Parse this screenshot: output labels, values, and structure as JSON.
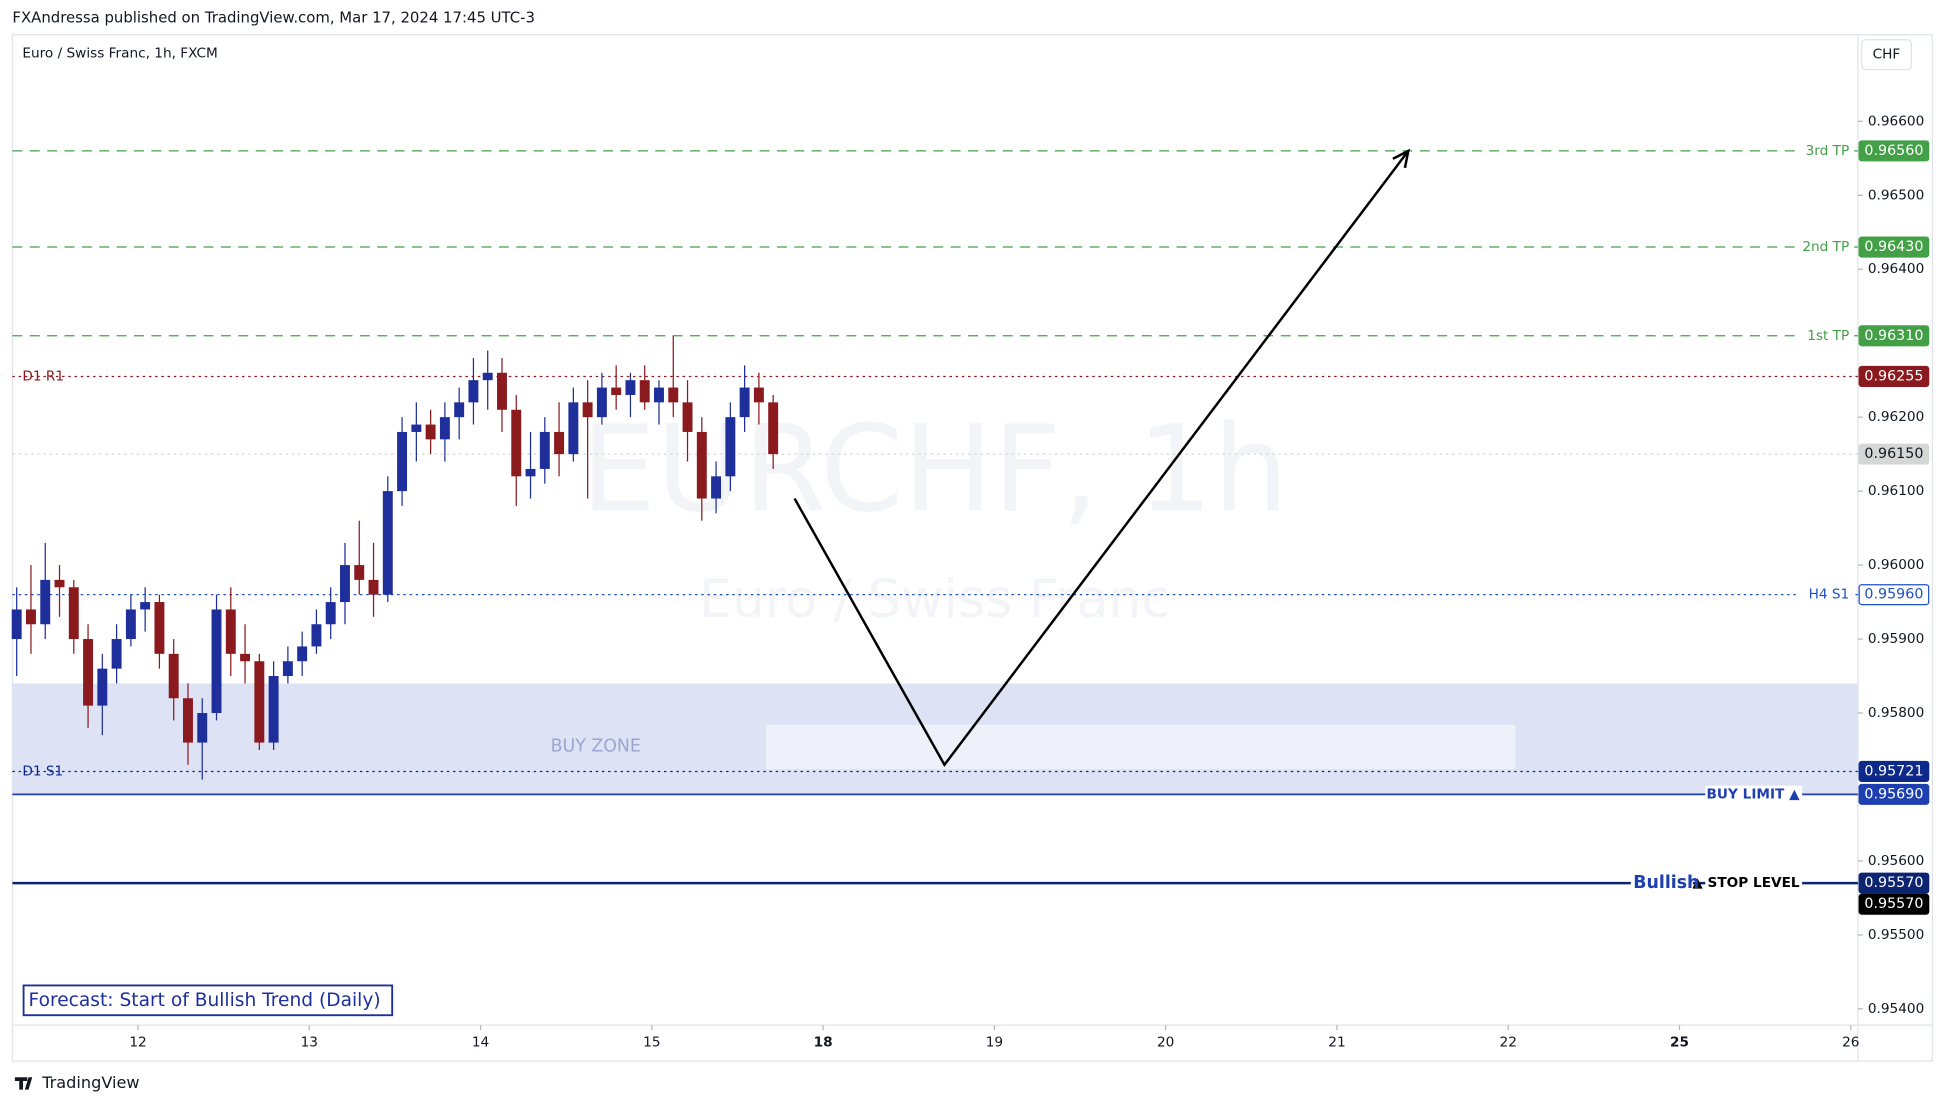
{
  "header": "FXAndressa published on TradingView.com, Mar 17, 2024 17:45 UTC-3",
  "footer": "TradingView",
  "chart_data": {
    "type": "candlestick",
    "title": "Euro / Swiss Franc, 1h, FXCM",
    "currency": "CHF",
    "watermark": "EURCHF, 1h",
    "watermark_subtitle": "Euro / Swiss Franc",
    "annotation": "Forecast: Start of Bullish Trend (Daily)",
    "bullish_label": "Bullish",
    "up_color": "#1e2f9c",
    "down_color": "#8b1a1f",
    "xlim": [
      -17.6,
      241
    ],
    "ylim": [
      0.95378,
      0.96717
    ],
    "xticks": [
      {
        "value": 0,
        "label": "12"
      },
      {
        "value": 24,
        "label": "13"
      },
      {
        "value": 48,
        "label": "14"
      },
      {
        "value": 72,
        "label": "15"
      },
      {
        "value": 96,
        "label": "18",
        "bold": true
      },
      {
        "value": 120,
        "label": "19"
      },
      {
        "value": 144,
        "label": "20"
      },
      {
        "value": 168,
        "label": "21"
      },
      {
        "value": 192,
        "label": "22"
      },
      {
        "value": 216,
        "label": "25",
        "bold": true
      },
      {
        "value": 240,
        "label": "26"
      }
    ],
    "yticks": [
      {
        "value": 0.954,
        "label": "0.95400"
      },
      {
        "value": 0.955,
        "label": "0.95500"
      },
      {
        "value": 0.956,
        "label": "0.95600"
      },
      {
        "value": 0.958,
        "label": "0.95800"
      },
      {
        "value": 0.959,
        "label": "0.95900"
      },
      {
        "value": 0.96,
        "label": "0.96000"
      },
      {
        "value": 0.961,
        "label": "0.96100"
      },
      {
        "value": 0.962,
        "label": "0.96200"
      },
      {
        "value": 0.964,
        "label": "0.96400"
      },
      {
        "value": 0.965,
        "label": "0.96500"
      },
      {
        "value": 0.966,
        "label": "0.96600"
      }
    ],
    "x": [
      -17,
      -15,
      -13,
      -11,
      -9,
      -7,
      -5,
      -3,
      -1,
      1,
      3,
      5,
      7,
      9,
      11,
      13,
      15,
      17,
      19,
      21,
      23,
      25,
      27,
      29,
      31,
      33,
      35,
      37,
      39,
      41,
      43,
      45,
      47,
      49,
      51,
      53,
      55,
      57,
      59,
      61,
      63,
      65,
      67,
      69,
      71,
      73,
      75,
      77,
      79,
      81,
      83,
      85,
      87,
      89
    ],
    "open": [
      0.959,
      0.9594,
      0.9592,
      0.9598,
      0.9597,
      0.959,
      0.9581,
      0.9586,
      0.959,
      0.9594,
      0.9595,
      0.9588,
      0.9582,
      0.9576,
      0.958,
      0.9594,
      0.9588,
      0.9587,
      0.9576,
      0.9585,
      0.9587,
      0.9589,
      0.9592,
      0.9595,
      0.96,
      0.9598,
      0.9596,
      0.961,
      0.9618,
      0.9619,
      0.9617,
      0.962,
      0.9622,
      0.9625,
      0.9626,
      0.9621,
      0.9612,
      0.9613,
      0.9618,
      0.9615,
      0.9622,
      0.962,
      0.9624,
      0.9623,
      0.9625,
      0.9622,
      0.9624,
      0.9622,
      0.9618,
      0.9609,
      0.9612,
      0.962,
      0.9624,
      0.9622
    ],
    "high": [
      0.9597,
      0.96,
      0.9603,
      0.96,
      0.9598,
      0.9592,
      0.9588,
      0.9592,
      0.9596,
      0.9597,
      0.9596,
      0.959,
      0.9584,
      0.9582,
      0.9596,
      0.9597,
      0.9592,
      0.9588,
      0.9587,
      0.9589,
      0.9591,
      0.9594,
      0.9597,
      0.9603,
      0.9606,
      0.9603,
      0.9612,
      0.962,
      0.9622,
      0.9621,
      0.9622,
      0.9624,
      0.9628,
      0.9629,
      0.9628,
      0.9623,
      0.9618,
      0.962,
      0.9622,
      0.9624,
      0.9625,
      0.9626,
      0.9627,
      0.9626,
      0.9627,
      0.9625,
      0.9631,
      0.9625,
      0.962,
      0.9614,
      0.9622,
      0.9627,
      0.9626,
      0.9623
    ],
    "low": [
      0.9585,
      0.9588,
      0.959,
      0.9593,
      0.9588,
      0.9578,
      0.9577,
      0.9584,
      0.9589,
      0.9591,
      0.9586,
      0.9579,
      0.9573,
      0.9571,
      0.9579,
      0.9585,
      0.9584,
      0.9575,
      0.9575,
      0.9584,
      0.9585,
      0.9588,
      0.959,
      0.9592,
      0.9596,
      0.9593,
      0.9595,
      0.9608,
      0.9614,
      0.9615,
      0.9614,
      0.9617,
      0.9619,
      0.9621,
      0.9618,
      0.9608,
      0.9609,
      0.9611,
      0.9612,
      0.9614,
      0.9609,
      0.9619,
      0.9621,
      0.962,
      0.9621,
      0.9619,
      0.962,
      0.9614,
      0.9606,
      0.9607,
      0.961,
      0.9618,
      0.9619,
      0.9613
    ],
    "close": [
      0.9594,
      0.9592,
      0.9598,
      0.9597,
      0.959,
      0.9581,
      0.9586,
      0.959,
      0.9594,
      0.9595,
      0.9588,
      0.9582,
      0.9576,
      0.958,
      0.9594,
      0.9588,
      0.9587,
      0.9576,
      0.9585,
      0.9587,
      0.9589,
      0.9592,
      0.9595,
      0.96,
      0.9598,
      0.9596,
      0.961,
      0.9618,
      0.9619,
      0.9617,
      0.962,
      0.9622,
      0.9625,
      0.9626,
      0.9621,
      0.9612,
      0.9613,
      0.9618,
      0.9615,
      0.9622,
      0.962,
      0.9624,
      0.9623,
      0.9625,
      0.9622,
      0.9624,
      0.9622,
      0.9618,
      0.9609,
      0.9612,
      0.962,
      0.9624,
      0.9622,
      0.9615
    ],
    "zone": {
      "name": "BUY ZONE",
      "top": 0.9584,
      "bottom": 0.9569,
      "color": "#dde3f5",
      "inner": {
        "x": [
          88,
          193
        ],
        "y": [
          0.95784,
          0.95724
        ],
        "color": "#eef1fa"
      }
    },
    "forecast_path": {
      "x": [
        92,
        113,
        178
      ],
      "y": [
        0.9609,
        0.9573,
        0.9656
      ]
    },
    "levels": [
      {
        "name": "3rd TP",
        "value": 0.9656,
        "label": "0.96560",
        "color": "#43a047",
        "style": "dashed",
        "side": "right"
      },
      {
        "name": "2nd TP",
        "value": 0.9643,
        "label": "0.96430",
        "color": "#43a047",
        "style": "dashed",
        "side": "right"
      },
      {
        "name": "1st TP",
        "value": 0.9631,
        "label": "0.96310",
        "color": "#43a047",
        "style": "dashed",
        "side": "right"
      },
      {
        "name": "D1 R1",
        "value": 0.96255,
        "label": "0.96255",
        "color": "#8b1a1f",
        "style": "dotted",
        "side": "left"
      },
      {
        "value": 0.9615,
        "label": "0.96150",
        "color": "#d6d6d6",
        "style": "dotted"
      },
      {
        "name": "H4 S1",
        "value": 0.9596,
        "label": "0.95960",
        "color": "#1e50c8",
        "style": "dotted",
        "side": "right",
        "outline": true
      },
      {
        "name": "D1 S1",
        "value": 0.95721,
        "label": "0.95721",
        "color": "#0d2a8a",
        "style": "dotted",
        "side": "left"
      },
      {
        "name": "BUY LIMIT ▲",
        "value": 0.9569,
        "label": "0.95690",
        "color": "#1e3fb0",
        "style": "solid",
        "side": "right"
      },
      {
        "name": "▲ STOP LEVEL",
        "value": 0.9557,
        "label": "0.95570",
        "color": "#0d2470",
        "style": "solid",
        "side": "right"
      },
      {
        "value": 0.9557,
        "label": "0.95570",
        "color": "#000000",
        "style": "none"
      }
    ]
  }
}
